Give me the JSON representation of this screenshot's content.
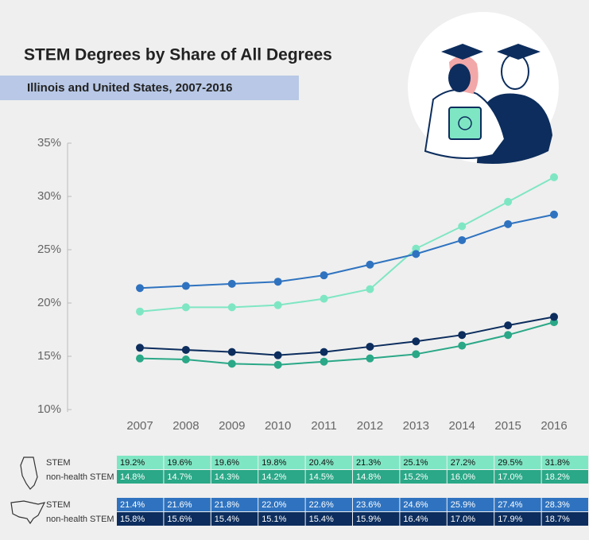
{
  "chart_data": {
    "type": "line",
    "title": "STEM Degrees by Share of All Degrees",
    "subtitle": "Illinois and United States, 2007-2016",
    "categories": [
      "2007",
      "2008",
      "2009",
      "2010",
      "2011",
      "2012",
      "2013",
      "2014",
      "2015",
      "2016"
    ],
    "ylim": [
      10,
      35
    ],
    "yticks": [
      {
        "value": 10,
        "label": "10%"
      },
      {
        "value": 15,
        "label": "15%"
      },
      {
        "value": 20,
        "label": "20%"
      },
      {
        "value": 25,
        "label": "25%"
      },
      {
        "value": 30,
        "label": "30%"
      },
      {
        "value": 35,
        "label": "35%"
      }
    ],
    "series": [
      {
        "name": "STEM",
        "color": "#7fe6c4",
        "values": [
          19.2,
          19.6,
          19.6,
          19.8,
          20.4,
          21.3,
          25.1,
          27.2,
          29.5,
          31.8
        ],
        "value_labels": [
          "19.2%",
          "19.6%",
          "19.6%",
          "19.8%",
          "20.4%",
          "21.3%",
          "25.1%",
          "27.2%",
          "29.5%",
          "31.8%"
        ]
      },
      {
        "name": "non-health STEM",
        "color": "#2aa887",
        "values": [
          14.8,
          14.7,
          14.3,
          14.2,
          14.5,
          14.8,
          15.2,
          16.0,
          17.0,
          18.2
        ],
        "value_labels": [
          "14.8%",
          "14.7%",
          "14.3%",
          "14.2%",
          "14.5%",
          "14.8%",
          "15.2%",
          "16.0%",
          "17.0%",
          "18.2%"
        ]
      },
      {
        "name": "STEM",
        "color": "#2f73c0",
        "values": [
          21.4,
          21.6,
          21.8,
          22.0,
          22.6,
          23.6,
          24.6,
          25.9,
          27.4,
          28.3
        ],
        "value_labels": [
          "21.4%",
          "21.6%",
          "21.8%",
          "22.0%",
          "22.6%",
          "23.6%",
          "24.6%",
          "25.9%",
          "27.4%",
          "28.3%"
        ]
      },
      {
        "name": "non-health STEM",
        "color": "#0c2d5d",
        "values": [
          15.8,
          15.6,
          15.4,
          15.1,
          15.4,
          15.9,
          16.4,
          17.0,
          17.9,
          18.7
        ],
        "value_labels": [
          "15.8%",
          "15.6%",
          "15.4%",
          "15.1%",
          "15.4%",
          "15.9%",
          "16.4%",
          "17.0%",
          "17.9%",
          "18.7%"
        ]
      }
    ]
  }
}
